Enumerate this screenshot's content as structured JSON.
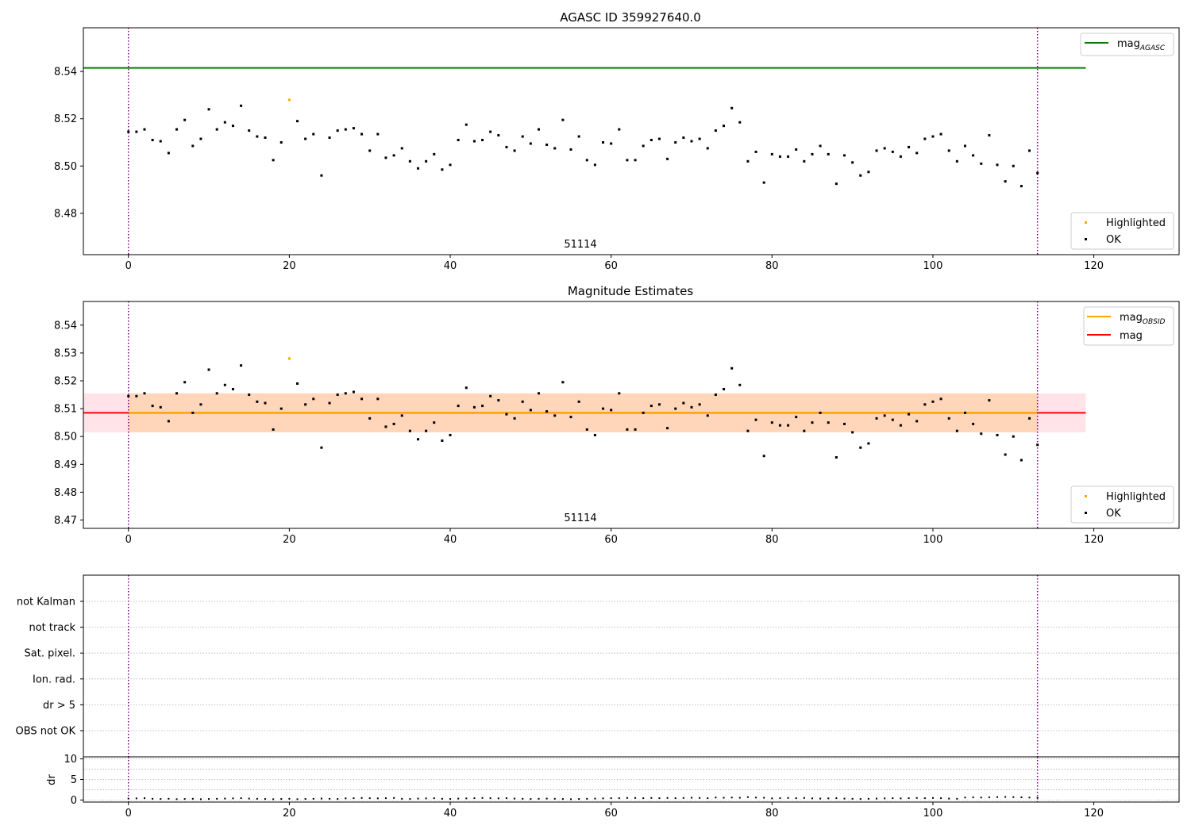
{
  "chart_data": [
    {
      "type": "scatter",
      "title": "AGASC ID 359927640.0",
      "annotation": "51114",
      "xlim": [
        -5.6,
        130.6
      ],
      "ylim": [
        8.4625,
        8.5585
      ],
      "xticks": [
        0,
        20,
        40,
        60,
        80,
        100,
        120
      ],
      "yticks": [
        8.48,
        8.5,
        8.52,
        8.54
      ],
      "ytick_labels": [
        "8.48",
        "8.50",
        "8.52",
        "8.54"
      ],
      "reference_lines": [
        {
          "name": "mag_AGASC",
          "label_main": "mag",
          "label_sub": "AGASC",
          "value": 8.5415,
          "x_range": [
            -5.6,
            119
          ],
          "color": "#008000"
        }
      ],
      "vlines": [
        0,
        113
      ],
      "vline_color": "#800080",
      "legend": [
        {
          "label": "Highlighted",
          "color": "#ffa500"
        },
        {
          "label": "OK",
          "color": "#000000"
        }
      ],
      "highlighted": {
        "x": [
          20
        ],
        "y": [
          8.528
        ]
      },
      "ok": {
        "x": [
          0,
          1,
          2,
          3,
          4,
          5,
          6,
          7,
          8,
          9,
          10,
          11,
          12,
          13,
          14,
          15,
          16,
          17,
          18,
          19,
          21,
          22,
          23,
          24,
          25,
          26,
          27,
          28,
          29,
          30,
          31,
          32,
          33,
          34,
          35,
          36,
          37,
          38,
          39,
          40,
          41,
          42,
          43,
          44,
          45,
          46,
          47,
          48,
          49,
          50,
          51,
          52,
          53,
          54,
          55,
          56,
          57,
          58,
          59,
          60,
          61,
          62,
          63,
          64,
          65,
          66,
          67,
          68,
          69,
          70,
          71,
          72,
          73,
          74,
          75,
          76,
          77,
          78,
          79,
          80,
          81,
          82,
          83,
          84,
          85,
          86,
          87,
          88,
          89,
          90,
          91,
          92,
          93,
          94,
          95,
          96,
          97,
          98,
          99,
          100,
          101,
          102,
          103,
          104,
          105,
          106,
          107,
          108,
          109,
          110,
          111,
          112,
          113
        ],
        "y": [
          8.5145,
          8.5145,
          8.5155,
          8.511,
          8.5105,
          8.5055,
          8.5155,
          8.5195,
          8.5085,
          8.5115,
          8.524,
          8.5155,
          8.5185,
          8.517,
          8.5255,
          8.515,
          8.5125,
          8.512,
          8.5025,
          8.51,
          8.519,
          8.5115,
          8.5135,
          8.496,
          8.512,
          8.515,
          8.5155,
          8.516,
          8.5135,
          8.5065,
          8.5135,
          8.5035,
          8.5045,
          8.5075,
          8.502,
          8.499,
          8.502,
          8.505,
          8.4985,
          8.5005,
          8.511,
          8.5175,
          8.5105,
          8.511,
          8.5145,
          8.513,
          8.508,
          8.5065,
          8.5125,
          8.5095,
          8.5155,
          8.509,
          8.5075,
          8.5195,
          8.507,
          8.5125,
          8.5025,
          8.5005,
          8.51,
          8.5095,
          8.5155,
          8.5025,
          8.5025,
          8.5085,
          8.511,
          8.5115,
          8.503,
          8.51,
          8.512,
          8.5105,
          8.5115,
          8.5075,
          8.515,
          8.517,
          8.5245,
          8.5185,
          8.502,
          8.506,
          8.493,
          8.505,
          8.504,
          8.504,
          8.507,
          8.502,
          8.505,
          8.5085,
          8.505,
          8.4925,
          8.5045,
          8.5015,
          8.496,
          8.4975,
          8.5065,
          8.5075,
          8.506,
          8.504,
          8.508,
          8.5055,
          8.5115,
          8.5125,
          8.5135,
          8.5065,
          8.502,
          8.5085,
          8.5045,
          8.501,
          8.513,
          8.5005,
          8.4935,
          8.5,
          8.4915,
          8.5065,
          8.497
        ]
      }
    },
    {
      "type": "scatter",
      "title": "Magnitude Estimates",
      "annotation": "51114",
      "xlim": [
        -5.6,
        130.6
      ],
      "ylim": [
        8.467,
        8.5485
      ],
      "xticks": [
        0,
        20,
        40,
        60,
        80,
        100,
        120
      ],
      "yticks": [
        8.47,
        8.48,
        8.49,
        8.5,
        8.51,
        8.52,
        8.53,
        8.54
      ],
      "ytick_labels": [
        "8.47",
        "8.48",
        "8.49",
        "8.50",
        "8.51",
        "8.52",
        "8.53",
        "8.54"
      ],
      "bands": [
        {
          "y_range": [
            8.5015,
            8.5155
          ],
          "x_range": [
            -5.6,
            119
          ],
          "color": "#ffc0cb",
          "opacity": 0.45
        },
        {
          "y_range": [
            8.5015,
            8.5155
          ],
          "x_range": [
            0,
            113
          ],
          "color": "#ffa500",
          "opacity": 0.2
        }
      ],
      "reference_lines": [
        {
          "name": "mag",
          "value": 8.5085,
          "x_range": [
            -5.6,
            119
          ],
          "color": "#ff0000"
        },
        {
          "name": "mag_OBSID",
          "value": 8.5085,
          "x_range": [
            0,
            113
          ],
          "color": "#ffa500"
        }
      ],
      "line_legend": [
        {
          "label_main": "mag",
          "label_sub": "OBSID",
          "color": "#ffa500"
        },
        {
          "label_main": "mag",
          "label_sub": "",
          "color": "#ff0000"
        }
      ],
      "vlines": [
        0,
        113
      ],
      "vline_color": "#800080",
      "legend": [
        {
          "label": "Highlighted",
          "color": "#ffa500"
        },
        {
          "label": "OK",
          "color": "#000000"
        }
      ],
      "highlighted": {
        "x": [
          20
        ],
        "y": [
          8.528
        ]
      },
      "ok": {
        "x": [
          0,
          1,
          2,
          3,
          4,
          5,
          6,
          7,
          8,
          9,
          10,
          11,
          12,
          13,
          14,
          15,
          16,
          17,
          18,
          19,
          21,
          22,
          23,
          24,
          25,
          26,
          27,
          28,
          29,
          30,
          31,
          32,
          33,
          34,
          35,
          36,
          37,
          38,
          39,
          40,
          41,
          42,
          43,
          44,
          45,
          46,
          47,
          48,
          49,
          50,
          51,
          52,
          53,
          54,
          55,
          56,
          57,
          58,
          59,
          60,
          61,
          62,
          63,
          64,
          65,
          66,
          67,
          68,
          69,
          70,
          71,
          72,
          73,
          74,
          75,
          76,
          77,
          78,
          79,
          80,
          81,
          82,
          83,
          84,
          85,
          86,
          87,
          88,
          89,
          90,
          91,
          92,
          93,
          94,
          95,
          96,
          97,
          98,
          99,
          100,
          101,
          102,
          103,
          104,
          105,
          106,
          107,
          108,
          109,
          110,
          111,
          112,
          113
        ],
        "y": [
          8.5145,
          8.5145,
          8.5155,
          8.511,
          8.5105,
          8.5055,
          8.5155,
          8.5195,
          8.5085,
          8.5115,
          8.524,
          8.5155,
          8.5185,
          8.517,
          8.5255,
          8.515,
          8.5125,
          8.512,
          8.5025,
          8.51,
          8.519,
          8.5115,
          8.5135,
          8.496,
          8.512,
          8.515,
          8.5155,
          8.516,
          8.5135,
          8.5065,
          8.5135,
          8.5035,
          8.5045,
          8.5075,
          8.502,
          8.499,
          8.502,
          8.505,
          8.4985,
          8.5005,
          8.511,
          8.5175,
          8.5105,
          8.511,
          8.5145,
          8.513,
          8.508,
          8.5065,
          8.5125,
          8.5095,
          8.5155,
          8.509,
          8.5075,
          8.5195,
          8.507,
          8.5125,
          8.5025,
          8.5005,
          8.51,
          8.5095,
          8.5155,
          8.5025,
          8.5025,
          8.5085,
          8.511,
          8.5115,
          8.503,
          8.51,
          8.512,
          8.5105,
          8.5115,
          8.5075,
          8.515,
          8.517,
          8.5245,
          8.5185,
          8.502,
          8.506,
          8.493,
          8.505,
          8.504,
          8.504,
          8.507,
          8.502,
          8.505,
          8.5085,
          8.505,
          8.4925,
          8.5045,
          8.5015,
          8.496,
          8.4975,
          8.5065,
          8.5075,
          8.506,
          8.504,
          8.508,
          8.5055,
          8.5115,
          8.5125,
          8.5135,
          8.5065,
          8.502,
          8.5085,
          8.5045,
          8.501,
          8.513,
          8.5005,
          8.4935,
          8.5,
          8.4915,
          8.5065,
          8.497
        ]
      }
    },
    {
      "type": "scatter",
      "title": "",
      "ylabel": "",
      "categories": [
        "OBS not OK",
        "dr > 5",
        "Ion. rad.",
        "Sat. pixel.",
        "not track",
        "not Kalman"
      ],
      "grid": true,
      "vlines": [
        0,
        113
      ],
      "vline_color": "#800080",
      "xlim": [
        -5.6,
        130.6
      ]
    },
    {
      "type": "scatter",
      "title": "",
      "ylabel": "dr",
      "xlim": [
        -5.6,
        130.6
      ],
      "ylim": [
        -0.5,
        10.5
      ],
      "xticks": [
        0,
        20,
        40,
        60,
        80,
        100,
        120
      ],
      "yticks": [
        0,
        5,
        10
      ],
      "ytick_labels": [
        "0",
        "5",
        "10"
      ],
      "grid": true,
      "vlines": [
        0,
        113
      ],
      "vline_color": "#800080",
      "dr_y": [
        0.35,
        0.4,
        0.45,
        0.3,
        0.25,
        0.3,
        0.2,
        0.25,
        0.3,
        0.2,
        0.25,
        0.3,
        0.35,
        0.4,
        0.45,
        0.35,
        0.3,
        0.25,
        0.2,
        0.25,
        0.3,
        0.2,
        0.25,
        0.3,
        0.35,
        0.3,
        0.25,
        0.4,
        0.45,
        0.5,
        0.45,
        0.4,
        0.45,
        0.5,
        0.3,
        0.25,
        0.35,
        0.4,
        0.45,
        0.3,
        0.25,
        0.35,
        0.4,
        0.45,
        0.5,
        0.45,
        0.4,
        0.45,
        0.35,
        0.3,
        0.25,
        0.3,
        0.35,
        0.3,
        0.25,
        0.2,
        0.25,
        0.3,
        0.35,
        0.4,
        0.45,
        0.45,
        0.5,
        0.5,
        0.45,
        0.5,
        0.45,
        0.5,
        0.45,
        0.5,
        0.55,
        0.5,
        0.45,
        0.6,
        0.55,
        0.6,
        0.55,
        0.7,
        0.6,
        0.55,
        0.4,
        0.45,
        0.5,
        0.45,
        0.5,
        0.4,
        0.35,
        0.4,
        0.45,
        0.35,
        0.3,
        0.25,
        0.3,
        0.35,
        0.4,
        0.45,
        0.4,
        0.45,
        0.5,
        0.45,
        0.5,
        0.45,
        0.35,
        0.3,
        0.6,
        0.65,
        0.6,
        0.65,
        0.7,
        0.75,
        0.7,
        0.65,
        0.6,
        0.55
      ]
    }
  ]
}
